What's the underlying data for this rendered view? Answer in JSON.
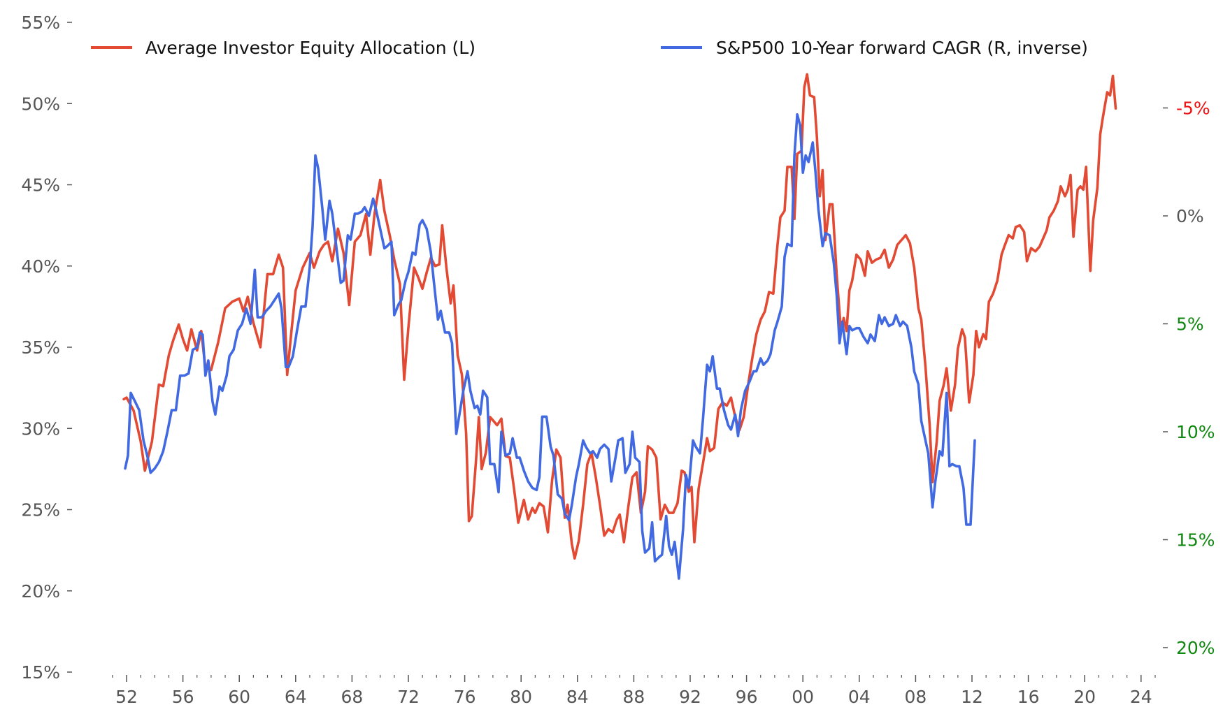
{
  "chart_data": {
    "type": "line",
    "title": "",
    "xlabel": "",
    "ylabel_left": "",
    "ylabel_right": "",
    "legend_position": "top",
    "grid": false,
    "x_range": [
      1951,
      2025
    ],
    "x_ticks": [
      1952,
      1956,
      1960,
      1964,
      1968,
      1972,
      1976,
      1980,
      1984,
      1988,
      1992,
      1996,
      2000,
      2004,
      2008,
      2012,
      2016,
      2020,
      2024
    ],
    "x_tick_labels": [
      "52",
      "56",
      "60",
      "64",
      "68",
      "72",
      "76",
      "80",
      "84",
      "88",
      "92",
      "96",
      "00",
      "04",
      "08",
      "12",
      "16",
      "20",
      "24"
    ],
    "y_left": {
      "range": [
        15,
        55
      ],
      "ticks": [
        15,
        20,
        25,
        30,
        35,
        40,
        45,
        50,
        55
      ],
      "tick_labels": [
        "15%",
        "20%",
        "25%",
        "30%",
        "35%",
        "40%",
        "45%",
        "50%",
        "55%"
      ],
      "color": "#555555"
    },
    "y_right": {
      "inverted": true,
      "range": [
        -6.2,
        21.2
      ],
      "ticks": [
        -5,
        0,
        5,
        10,
        15,
        20
      ],
      "tick_labels": [
        "-5%",
        "0%",
        "5%",
        "10%",
        "15%",
        "20%"
      ],
      "tick_colors": [
        "#ee1111",
        "#555555",
        "#118811",
        "#118811",
        "#118811",
        "#118811"
      ]
    },
    "series": [
      {
        "name": "Average Investor Equity Allocation (L)",
        "axis": "left",
        "color": "#e24a33",
        "x": [
          1951.8,
          1952.0,
          1952.5,
          1953.0,
          1953.3,
          1953.8,
          1954.3,
          1954.6,
          1955.0,
          1955.3,
          1955.7,
          1956.0,
          1956.3,
          1956.6,
          1957.0,
          1957.3,
          1957.6,
          1958.0,
          1958.5,
          1959.0,
          1959.5,
          1960.0,
          1960.3,
          1960.6,
          1961.0,
          1961.5,
          1962.0,
          1962.4,
          1962.8,
          1963.1,
          1963.4,
          1963.7,
          1964.0,
          1964.5,
          1965.0,
          1965.3,
          1965.7,
          1966.0,
          1966.3,
          1966.6,
          1967.0,
          1967.4,
          1967.8,
          1968.2,
          1968.6,
          1969.0,
          1969.3,
          1969.6,
          1970.0,
          1970.3,
          1970.7,
          1971.0,
          1971.4,
          1971.7,
          1972.0,
          1972.4,
          1972.7,
          1973.0,
          1973.3,
          1973.6,
          1973.9,
          1974.2,
          1974.4,
          1974.7,
          1975.0,
          1975.2,
          1975.5,
          1975.8,
          1976.1,
          1976.3,
          1976.5,
          1976.8,
          1977.0,
          1977.2,
          1977.5,
          1977.8,
          1978.0,
          1978.3,
          1978.6,
          1978.9,
          1979.2,
          1979.5,
          1979.8,
          1980.2,
          1980.5,
          1980.8,
          1981.0,
          1981.3,
          1981.6,
          1981.9,
          1982.2,
          1982.5,
          1982.8,
          1983.1,
          1983.3,
          1983.6,
          1983.8,
          1984.1,
          1984.4,
          1984.7,
          1985.0,
          1985.3,
          1985.6,
          1985.9,
          1986.2,
          1986.5,
          1986.8,
          1987.0,
          1987.3,
          1987.6,
          1987.9,
          1988.2,
          1988.5,
          1988.8,
          1989.0,
          1989.3,
          1989.6,
          1989.9,
          1990.2,
          1990.5,
          1990.8,
          1991.1,
          1991.4,
          1991.6,
          1991.9,
          1992.1,
          1992.3,
          1992.6,
          1992.9,
          1993.2,
          1993.4,
          1993.7,
          1994.0,
          1994.3,
          1994.6,
          1994.9,
          1995.2,
          1995.5,
          1995.8,
          1996.1,
          1996.4,
          1996.7,
          1997.0,
          1997.3,
          1997.6,
          1997.9,
          1998.2,
          1998.4,
          1998.7,
          1998.9,
          1999.2,
          1999.4,
          1999.6,
          1999.9,
          2000.1,
          2000.3,
          2000.5,
          2000.8,
          2001.0,
          2001.2,
          2001.4,
          2001.6,
          2001.9,
          2002.1,
          2002.4,
          2002.7,
          2002.9,
          2003.1,
          2003.3,
          2003.5,
          2003.8,
          2004.1,
          2004.4,
          2004.6,
          2004.9,
          2005.2,
          2005.5,
          2005.8,
          2006.1,
          2006.4,
          2006.7,
          2007.0,
          2007.3,
          2007.6,
          2007.9,
          2008.2,
          2008.4,
          2008.7,
          2009.0,
          2009.2,
          2009.5,
          2009.7,
          2010.0,
          2010.2,
          2010.5,
          2010.8,
          2011.0,
          2011.3,
          2011.5,
          2011.8,
          2012.1,
          2012.3,
          2012.5,
          2012.8,
          2013.0,
          2013.2,
          2013.5,
          2013.8,
          2014.1,
          2014.3,
          2014.6,
          2014.9,
          2015.1,
          2015.4,
          2015.7,
          2015.9,
          2016.2,
          2016.5,
          2016.8,
          2017.0,
          2017.3,
          2017.5,
          2017.8,
          2018.1,
          2018.3,
          2018.6,
          2018.8,
          2019.0,
          2019.2,
          2019.5,
          2019.7,
          2019.9,
          2020.1,
          2020.4,
          2020.6,
          2020.9,
          2021.1,
          2021.3,
          2021.6,
          2021.8,
          2022.0,
          2022.2
        ],
        "values": [
          31.8,
          31.9,
          31.1,
          29.2,
          27.4,
          29.2,
          32.7,
          32.6,
          34.5,
          35.4,
          36.4,
          35.5,
          34.8,
          36.1,
          34.8,
          36.0,
          33.7,
          33.6,
          35.3,
          37.4,
          37.8,
          38.0,
          37.2,
          38.1,
          36.5,
          35.0,
          39.5,
          39.5,
          40.7,
          39.9,
          33.3,
          36.0,
          38.5,
          39.9,
          40.8,
          39.9,
          40.9,
          41.3,
          41.5,
          40.3,
          42.3,
          40.8,
          37.6,
          41.5,
          41.9,
          43.2,
          40.7,
          43.2,
          45.3,
          43.4,
          41.8,
          40.4,
          38.9,
          33.0,
          36.2,
          39.9,
          39.3,
          38.6,
          39.6,
          40.5,
          40.0,
          40.1,
          42.5,
          39.9,
          37.7,
          38.8,
          34.5,
          33.3,
          29.7,
          24.3,
          24.6,
          28.0,
          30.7,
          27.5,
          28.5,
          30.7,
          30.5,
          30.2,
          30.6,
          28.3,
          28.2,
          26.3,
          24.2,
          25.6,
          24.4,
          25.1,
          24.8,
          25.4,
          25.2,
          23.6,
          26.8,
          28.7,
          28.2,
          24.5,
          25.3,
          22.9,
          22.0,
          23.1,
          25.3,
          27.8,
          28.5,
          27.0,
          25.3,
          23.4,
          23.8,
          23.6,
          24.4,
          24.7,
          23.0,
          25.1,
          27.0,
          27.3,
          24.8,
          26.1,
          28.9,
          28.7,
          28.2,
          24.4,
          25.3,
          24.8,
          24.8,
          25.4,
          27.4,
          27.3,
          26.1,
          26.4,
          23.0,
          26.3,
          27.8,
          29.4,
          28.6,
          28.8,
          31.2,
          31.6,
          31.4,
          31.9,
          30.7,
          29.9,
          30.7,
          32.6,
          34.3,
          35.8,
          36.7,
          37.2,
          38.4,
          38.3,
          41.3,
          43.0,
          43.4,
          46.1,
          46.1,
          42.9,
          46.9,
          47.1,
          51.0,
          51.8,
          50.5,
          50.4,
          47.9,
          44.3,
          45.9,
          41.6,
          43.8,
          43.8,
          39.4,
          36.0,
          36.8,
          36.0,
          38.5,
          39.1,
          40.7,
          40.4,
          39.4,
          40.9,
          40.2,
          40.4,
          40.5,
          41.0,
          39.9,
          40.4,
          41.3,
          41.6,
          41.9,
          41.4,
          39.9,
          37.4,
          36.7,
          33.8,
          30.2,
          26.7,
          29.2,
          31.7,
          32.7,
          33.7,
          31.1,
          32.7,
          34.9,
          36.1,
          35.6,
          31.6,
          33.3,
          36.0,
          35.0,
          35.8,
          35.5,
          37.8,
          38.3,
          39.1,
          40.7,
          41.2,
          41.9,
          41.7,
          42.4,
          42.5,
          42.1,
          40.3,
          41.1,
          40.9,
          41.2,
          41.6,
          42.2,
          43.0,
          43.4,
          44.0,
          44.9,
          44.3,
          44.7,
          45.6,
          41.8,
          44.7,
          44.9,
          44.7,
          46.1,
          39.7,
          42.8,
          44.8,
          48.1,
          49.2,
          50.7,
          50.5,
          51.7,
          49.7
        ]
      },
      {
        "name": "S&P500 10-Year forward CAGR (R, inverse)",
        "axis": "right",
        "color": "#4169e1",
        "x": [
          1951.9,
          1952.1,
          1952.3,
          1952.6,
          1952.9,
          1953.2,
          1953.5,
          1953.7,
          1954.0,
          1954.3,
          1954.6,
          1954.9,
          1955.2,
          1955.5,
          1955.8,
          1956.1,
          1956.4,
          1956.7,
          1957.0,
          1957.2,
          1957.4,
          1957.6,
          1957.8,
          1958.1,
          1958.3,
          1958.6,
          1958.8,
          1959.1,
          1959.3,
          1959.6,
          1959.9,
          1960.2,
          1960.5,
          1960.8,
          1961.1,
          1961.3,
          1961.6,
          1961.9,
          1962.2,
          1962.5,
          1962.8,
          1963.0,
          1963.3,
          1963.5,
          1963.8,
          1964.1,
          1964.4,
          1964.7,
          1965.0,
          1965.2,
          1965.4,
          1965.6,
          1965.9,
          1966.1,
          1966.4,
          1966.6,
          1966.9,
          1967.2,
          1967.4,
          1967.7,
          1967.9,
          1968.2,
          1968.4,
          1968.7,
          1968.9,
          1969.2,
          1969.5,
          1969.7,
          1970.0,
          1970.3,
          1970.5,
          1970.8,
          1971.0,
          1971.3,
          1971.5,
          1971.8,
          1972.0,
          1972.3,
          1972.5,
          1972.8,
          1973.0,
          1973.3,
          1973.6,
          1973.8,
          1974.1,
          1974.3,
          1974.6,
          1974.9,
          1975.1,
          1975.4,
          1975.6,
          1975.9,
          1976.2,
          1976.4,
          1976.7,
          1976.9,
          1977.1,
          1977.3,
          1977.6,
          1977.8,
          1978.1,
          1978.4,
          1978.6,
          1978.9,
          1979.2,
          1979.4,
          1979.7,
          1979.9,
          1980.2,
          1980.5,
          1980.8,
          1981.1,
          1981.3,
          1981.5,
          1981.8,
          1982.1,
          1982.3,
          1982.6,
          1982.9,
          1983.1,
          1983.4,
          1983.6,
          1983.9,
          1984.1,
          1984.4,
          1984.6,
          1984.9,
          1985.1,
          1985.4,
          1985.6,
          1985.9,
          1986.2,
          1986.4,
          1986.7,
          1986.9,
          1987.2,
          1987.4,
          1987.7,
          1987.9,
          1988.1,
          1988.4,
          1988.6,
          1988.8,
          1989.1,
          1989.3,
          1989.5,
          1989.8,
          1990.0,
          1990.3,
          1990.5,
          1990.7,
          1990.9,
          1991.2,
          1991.5,
          1991.7,
          1991.9,
          1992.2,
          1992.4,
          1992.7,
          1992.9,
          1993.2,
          1993.4,
          1993.6,
          1993.9,
          1994.1,
          1994.4,
          1994.7,
          1994.9,
          1995.2,
          1995.4,
          1995.6,
          1995.9,
          1996.2,
          1996.5,
          1996.7,
          1997.0,
          1997.2,
          1997.5,
          1997.7,
          1998.0,
          1998.2,
          1998.5,
          1998.7,
          1998.9,
          1999.2,
          1999.4,
          1999.6,
          1999.8,
          2000.0,
          2000.2,
          2000.4,
          2000.7,
          2000.9,
          2001.1,
          2001.4,
          2001.6,
          2001.9,
          2002.2,
          2002.4,
          2002.6,
          2002.8,
          2003.1,
          2003.3,
          2003.5,
          2003.8,
          2004.0,
          2004.3,
          2004.6,
          2004.8,
          2005.1,
          2005.4,
          2005.6,
          2005.8,
          2006.1,
          2006.4,
          2006.6,
          2006.9,
          2007.1,
          2007.4,
          2007.7,
          2007.9,
          2008.2,
          2008.4,
          2008.7,
          2008.9,
          2009.2,
          2009.4,
          2009.7,
          2009.9,
          2010.2,
          2010.4,
          2010.6,
          2010.9,
          2011.1,
          2011.4,
          2011.6,
          2011.9,
          2012.2
        ],
        "values": [
          11.7,
          11.1,
          8.2,
          8.6,
          9.0,
          10.4,
          11.2,
          11.9,
          11.7,
          11.4,
          10.9,
          10.0,
          9.0,
          9.0,
          7.4,
          7.4,
          7.3,
          6.2,
          6.1,
          5.4,
          5.5,
          7.4,
          6.7,
          8.6,
          9.2,
          7.9,
          8.1,
          7.4,
          6.5,
          6.2,
          5.3,
          5.0,
          4.3,
          5.0,
          2.5,
          4.7,
          4.7,
          4.4,
          4.2,
          3.9,
          3.6,
          4.3,
          7.0,
          7.0,
          6.5,
          5.3,
          4.2,
          4.2,
          2.4,
          0.5,
          -2.8,
          -2.2,
          -0.3,
          1.1,
          -0.7,
          -0.1,
          1.5,
          3.1,
          3.0,
          0.9,
          1.1,
          -0.1,
          -0.1,
          -0.2,
          -0.4,
          0.0,
          -0.8,
          -0.3,
          0.6,
          1.5,
          1.4,
          1.2,
          4.6,
          4.1,
          3.9,
          3.0,
          2.6,
          1.7,
          1.8,
          0.4,
          0.2,
          0.6,
          1.7,
          3.0,
          4.8,
          4.4,
          5.4,
          5.4,
          5.9,
          10.1,
          9.3,
          8.1,
          7.2,
          8.1,
          8.9,
          8.8,
          9.2,
          8.1,
          8.4,
          11.5,
          11.5,
          12.8,
          10.0,
          11.1,
          11.0,
          10.3,
          11.2,
          11.2,
          11.8,
          12.3,
          12.6,
          12.7,
          12.1,
          9.3,
          9.3,
          10.7,
          11.1,
          12.9,
          13.1,
          13.8,
          14.1,
          13.4,
          12.1,
          11.5,
          10.4,
          10.7,
          11.0,
          10.9,
          11.2,
          10.8,
          10.6,
          10.8,
          12.3,
          11.2,
          10.4,
          10.3,
          11.9,
          11.5,
          10.0,
          11.2,
          11.4,
          14.6,
          15.6,
          15.4,
          14.2,
          16.0,
          15.8,
          15.7,
          13.9,
          15.3,
          15.7,
          15.1,
          16.8,
          14.5,
          12.0,
          12.6,
          10.4,
          10.7,
          11.0,
          9.5,
          6.9,
          7.2,
          6.5,
          8.0,
          8.0,
          9.0,
          9.7,
          9.9,
          9.2,
          10.2,
          9.0,
          8.1,
          7.7,
          7.2,
          7.2,
          6.6,
          6.9,
          6.7,
          6.4,
          5.3,
          4.9,
          4.2,
          1.9,
          1.3,
          1.4,
          -2.8,
          -4.7,
          -4.2,
          -2.0,
          -2.8,
          -2.5,
          -3.4,
          -2.0,
          -0.3,
          1.4,
          0.8,
          0.9,
          2.2,
          3.7,
          5.9,
          4.9,
          6.4,
          5.1,
          5.3,
          5.2,
          5.2,
          5.6,
          5.9,
          5.5,
          5.8,
          4.6,
          5.0,
          4.7,
          5.1,
          5.0,
          4.6,
          5.1,
          4.9,
          5.1,
          6.1,
          7.2,
          7.8,
          9.5,
          10.4,
          11.0,
          13.5,
          12.3,
          10.9,
          11.1,
          8.2,
          11.6,
          11.5,
          11.6,
          11.6,
          12.6,
          14.3,
          14.3,
          10.4
        ]
      }
    ]
  }
}
